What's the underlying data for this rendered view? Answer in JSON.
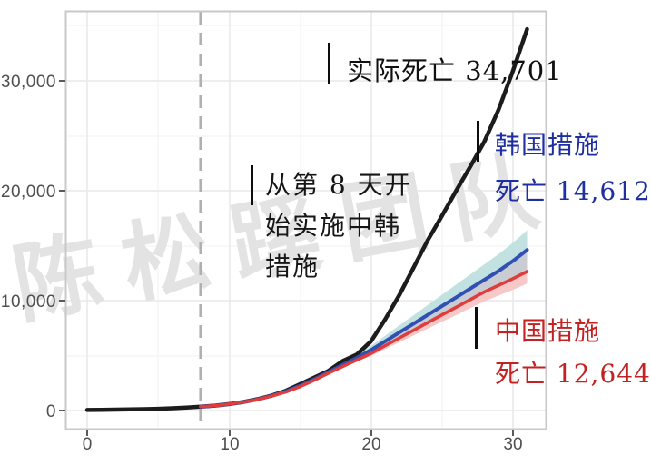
{
  "watermark": "陈松蹊团队",
  "colors": {
    "actual_line": "#1c1c1c",
    "korea_line": "#3050b4",
    "china_line": "#e03c3c",
    "korea_band": "#c2e2e1",
    "overlap_band": "#c9cdd3",
    "china_band": "#f6c8c8",
    "korea_label": "#1f2fa0",
    "china_label": "#c32222",
    "dashed_vline": "#b0b0b0",
    "axis_text": "#4f4f4f",
    "panel_border": "#c8c8c8"
  },
  "axes": {
    "y_ticks": [
      {
        "label": "0",
        "value": 0
      },
      {
        "label": "10,000",
        "value": 10000
      },
      {
        "label": "20,000",
        "value": 20000
      },
      {
        "label": "30,000",
        "value": 30000
      }
    ],
    "x_ticks": [
      {
        "label": "0",
        "value": 0
      },
      {
        "label": "10",
        "value": 10
      },
      {
        "label": "20",
        "value": 20
      },
      {
        "label": "30",
        "value": 30
      }
    ]
  },
  "annotations": {
    "actual_label": "实际死亡 34,701",
    "note_line1": "从第 8 天开",
    "note_line2": "始实施中韩",
    "note_line3": "措施",
    "korea_line1": "韩国措施",
    "korea_line2": "死亡 14,612",
    "china_line1": "中国措施",
    "china_line2": "死亡 12,644"
  },
  "chart_data": {
    "type": "line",
    "title": "",
    "xlabel": "",
    "ylabel": "",
    "x_range": [
      0,
      32.5
    ],
    "y_range": [
      0,
      36400
    ],
    "grid": true,
    "intervention_day": 8,
    "vline": {
      "day": 8,
      "style": "dashed",
      "color": "#b0b0b0"
    },
    "series": [
      {
        "name": "实际死亡 (actual deaths)",
        "color": "#1c1c1c",
        "width": 4.5,
        "final_value": 34701,
        "days": [
          0,
          1,
          2,
          3,
          4,
          5,
          6,
          7,
          8,
          9,
          10,
          11,
          12,
          13,
          14,
          15,
          16,
          17,
          18,
          19,
          20,
          21,
          22,
          23,
          24,
          25,
          26,
          27,
          28,
          29,
          30,
          31
        ],
        "values": [
          50,
          65,
          80,
          100,
          125,
          160,
          205,
          265,
          345,
          450,
          590,
          780,
          1030,
          1360,
          1800,
          2400,
          3000,
          3600,
          4500,
          5100,
          6300,
          8300,
          10500,
          13000,
          15500,
          17700,
          20000,
          22200,
          24500,
          27400,
          30900,
          34701
        ]
      },
      {
        "name": "韩国措施 (Korea measures)",
        "color": "#3050b4",
        "width": 4,
        "final_value": 14612,
        "days": [
          8,
          9,
          10,
          11,
          12,
          13,
          14,
          15,
          16,
          17,
          18,
          19,
          20,
          21,
          22,
          23,
          24,
          25,
          26,
          27,
          28,
          29,
          30,
          31
        ],
        "values": [
          345,
          450,
          590,
          780,
          1020,
          1340,
          1740,
          2250,
          2850,
          3500,
          4150,
          4800,
          5500,
          6300,
          7100,
          7900,
          8700,
          9500,
          10300,
          11100,
          11900,
          12700,
          13600,
          14612
        ]
      },
      {
        "name": "中国措施 (China measures)",
        "color": "#e03c3c",
        "width": 3.5,
        "final_value": 12644,
        "days": [
          8,
          9,
          10,
          11,
          12,
          13,
          14,
          15,
          16,
          17,
          18,
          19,
          20,
          21,
          22,
          23,
          24,
          25,
          26,
          27,
          28,
          29,
          30,
          31
        ],
        "values": [
          345,
          450,
          585,
          770,
          1000,
          1310,
          1690,
          2170,
          2760,
          3400,
          4000,
          4600,
          5200,
          5900,
          6600,
          7300,
          8000,
          8700,
          9400,
          10100,
          10800,
          11400,
          12000,
          12644
        ]
      }
    ],
    "bands": [
      {
        "name": "korea-ci-upper",
        "color": "#c2e2e1",
        "days": [
          17,
          18,
          19,
          20,
          21,
          22,
          23,
          24,
          25,
          26,
          27,
          28,
          29,
          30,
          31
        ],
        "upper": [
          3500,
          4280,
          5060,
          5890,
          6810,
          7740,
          8670,
          9600,
          10530,
          11460,
          12390,
          13310,
          14240,
          15270,
          16412
        ],
        "lower": [
          3500,
          4150,
          4800,
          5500,
          6300,
          7100,
          7900,
          8700,
          9500,
          10300,
          11100,
          11900,
          12700,
          13600,
          14612
        ]
      },
      {
        "name": "overlap-ci",
        "color": "#c9cdd3",
        "days": [
          17,
          18,
          19,
          20,
          21,
          22,
          23,
          24,
          25,
          26,
          27,
          28,
          29,
          30,
          31
        ],
        "upper": [
          3500,
          4150,
          4800,
          5500,
          6300,
          7100,
          7900,
          8700,
          9500,
          10300,
          11100,
          11900,
          12700,
          13600,
          14612
        ],
        "lower": [
          3400,
          4000,
          4600,
          5200,
          5900,
          6600,
          7300,
          8000,
          8700,
          9400,
          10100,
          10800,
          11400,
          12000,
          12644
        ]
      },
      {
        "name": "china-ci-lower",
        "color": "#f6c8c8",
        "days": [
          17,
          18,
          19,
          20,
          21,
          22,
          23,
          24,
          25,
          26,
          27,
          28,
          29,
          30,
          31
        ],
        "upper": [
          3400,
          4000,
          4600,
          5200,
          5900,
          6600,
          7300,
          8000,
          8700,
          9400,
          10100,
          10800,
          11400,
          12000,
          12644
        ],
        "lower": [
          3400,
          3920,
          4440,
          4960,
          5590,
          6210,
          6830,
          7450,
          8070,
          8690,
          9310,
          9940,
          10460,
          10980,
          11544
        ]
      }
    ]
  }
}
